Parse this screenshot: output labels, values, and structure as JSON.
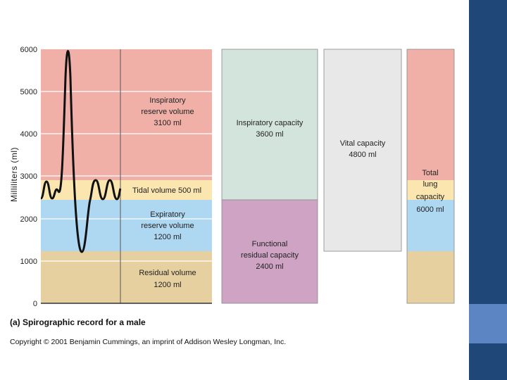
{
  "colors": {
    "inspiratory_reserve": "#f0b0a8",
    "tidal": "#fbe6b0",
    "expiratory_reserve": "#aed7f2",
    "residual": "#e6d0a0",
    "inspiratory_capacity": "#d3e4dc",
    "functional_residual": "#cfa3c4",
    "vital_capacity": "#e8e8e8",
    "sidebar": "#1f4777",
    "sidebar_accent": "#5b86c3"
  },
  "chart": {
    "y_axis_label": "Milliliters (ml)",
    "y_ticks": [
      "0",
      "1000",
      "2000",
      "3000",
      "4000",
      "5000",
      "6000"
    ]
  },
  "volumes": {
    "inspiratory_reserve": {
      "line1": "Inspiratory",
      "line2": "reserve volume",
      "line3": "3100 ml",
      "value_ml": 3100
    },
    "tidal": {
      "line1": "Tidal volume 500 ml",
      "value_ml": 500
    },
    "expiratory_reserve": {
      "line1": "Expiratory",
      "line2": "reserve volume",
      "line3": "1200 ml",
      "value_ml": 1200
    },
    "residual": {
      "line1": "Residual volume",
      "line2": "1200 ml",
      "value_ml": 1200
    }
  },
  "capacities": {
    "inspiratory": {
      "line1": "Inspiratory capacity",
      "line2": "3600 ml",
      "value_ml": 3600
    },
    "functional_residual": {
      "line1": "Functional",
      "line2": "residual capacity",
      "line3": "2400 ml",
      "value_ml": 2400
    },
    "vital": {
      "line1": "Vital capacity",
      "line2": "4800 ml",
      "value_ml": 4800
    },
    "total": {
      "line1": "Total",
      "line2": "lung",
      "line3": "capacity",
      "line4": "6000 ml",
      "value_ml": 6000
    }
  },
  "caption": "(a) Spirographic record for a male",
  "copyright": "Copyright © 2001 Benjamin Cummings, an imprint of Addison Wesley Longman, Inc."
}
